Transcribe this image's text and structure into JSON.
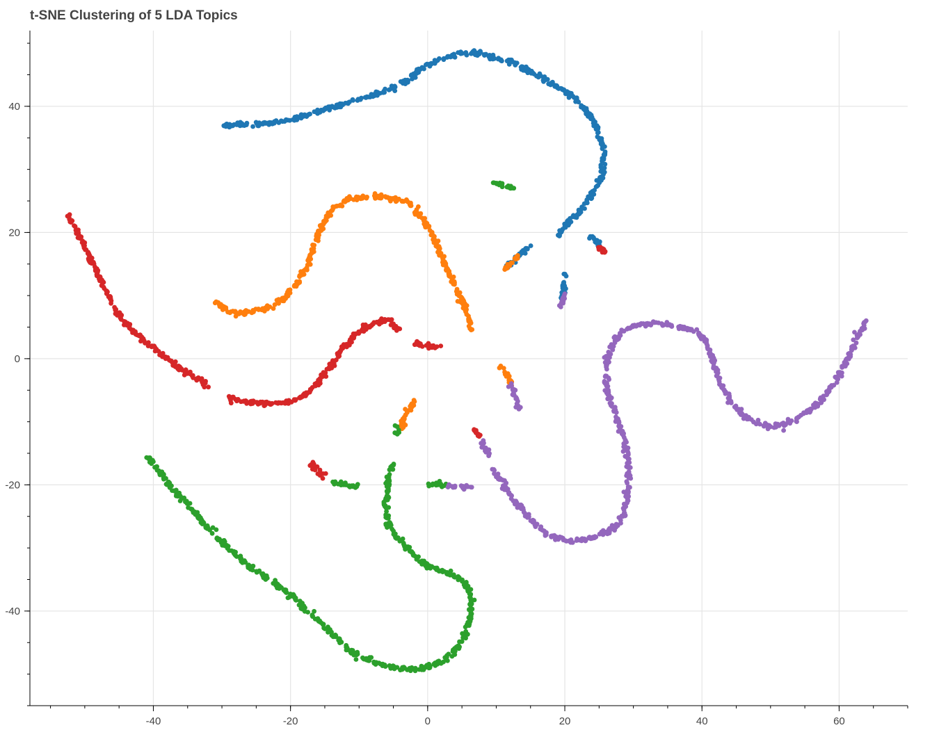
{
  "chart_data": {
    "type": "scatter",
    "title": "t-SNE Clustering of 5 LDA Topics",
    "xlabel": "",
    "ylabel": "",
    "xlim": [
      -58,
      70
    ],
    "ylim": [
      -55,
      52
    ],
    "x_ticks": [
      -40,
      -20,
      0,
      20,
      40,
      60
    ],
    "y_ticks": [
      40,
      20,
      0,
      -20,
      -40
    ],
    "grid": true,
    "legend": "none",
    "colors": [
      "#1f77b4",
      "#ff7f0e",
      "#2ca02c",
      "#d62728",
      "#9467bd"
    ],
    "series": [
      {
        "color": "#1f77b4",
        "segments": [
          [
            [
              -30,
              37
            ],
            [
              -25,
              37.1
            ],
            [
              -20,
              37.8
            ],
            [
              -15,
              39.5
            ],
            [
              -10,
              41
            ],
            [
              -6,
              42.5
            ],
            [
              -3,
              44
            ],
            [
              -1,
              46
            ],
            [
              2,
              47.5
            ],
            [
              5,
              48.5
            ],
            [
              8,
              48.3
            ],
            [
              12,
              47
            ],
            [
              16,
              45
            ],
            [
              19,
              43
            ],
            [
              22,
              41
            ],
            [
              24.5,
              37
            ],
            [
              25.8,
              33
            ],
            [
              25.5,
              29
            ],
            [
              24,
              26
            ],
            [
              22,
              23
            ],
            [
              20,
              21
            ],
            [
              19,
              19.5
            ]
          ],
          [
            [
              15,
              18
            ],
            [
              13,
              16
            ],
            [
              11.5,
              14.5
            ]
          ],
          [
            [
              20,
              13.5
            ],
            [
              19.8,
              11
            ],
            [
              19.6,
              9.5
            ]
          ],
          [
            [
              23.5,
              19.5
            ],
            [
              24.5,
              18.5
            ],
            [
              25.3,
              17.8
            ]
          ]
        ]
      },
      {
        "color": "#ff7f0e",
        "segments": [
          [
            [
              -31,
              9
            ],
            [
              -29,
              7.5
            ],
            [
              -27,
              7.2
            ],
            [
              -24,
              7.8
            ],
            [
              -21,
              9.5
            ],
            [
              -19,
              12
            ],
            [
              -17.5,
              15
            ],
            [
              -16.5,
              18
            ],
            [
              -15.5,
              21
            ],
            [
              -14,
              23.5
            ],
            [
              -12,
              25
            ],
            [
              -9,
              25.8
            ],
            [
              -6,
              25.6
            ],
            [
              -3,
              24.8
            ],
            [
              -1,
              22.5
            ],
            [
              1,
              19
            ],
            [
              2.5,
              15
            ],
            [
              4,
              11.5
            ],
            [
              5.3,
              8.5
            ],
            [
              6,
              6
            ],
            [
              6.3,
              4.5
            ]
          ],
          [
            [
              11,
              14
            ],
            [
              12.3,
              15.2
            ],
            [
              13.3,
              16.5
            ]
          ],
          [
            [
              10.5,
              -1
            ],
            [
              11.5,
              -2.8
            ],
            [
              12.5,
              -4.3
            ]
          ],
          [
            [
              -4,
              -11
            ],
            [
              -3,
              -8.5
            ],
            [
              -2,
              -6.5
            ]
          ]
        ]
      },
      {
        "color": "#2ca02c",
        "segments": [
          [
            [
              -41,
              -15.5
            ],
            [
              -39,
              -18
            ],
            [
              -37,
              -21
            ],
            [
              -35,
              -23
            ],
            [
              -32,
              -27
            ],
            [
              -29,
              -30
            ],
            [
              -26,
              -33
            ],
            [
              -23,
              -35
            ],
            [
              -20,
              -37.5
            ],
            [
              -17,
              -40.5
            ],
            [
              -14,
              -43.5
            ],
            [
              -11,
              -46.5
            ],
            [
              -8,
              -48
            ],
            [
              -5,
              -49
            ],
            [
              -2,
              -49.2
            ],
            [
              1,
              -48.5
            ],
            [
              3.5,
              -47
            ],
            [
              5.5,
              -44
            ],
            [
              6.3,
              -40
            ],
            [
              6.2,
              -37
            ],
            [
              5,
              -35
            ],
            [
              3,
              -34
            ],
            [
              0,
              -33
            ],
            [
              -2,
              -31
            ],
            [
              -4,
              -29
            ],
            [
              -5.5,
              -27
            ],
            [
              -6,
              -24
            ],
            [
              -6,
              -21
            ],
            [
              -5.5,
              -18
            ],
            [
              -5,
              -16.5
            ]
          ],
          [
            [
              -14,
              -19.7
            ],
            [
              -12,
              -20
            ],
            [
              -10,
              -20.4
            ]
          ],
          [
            [
              0,
              -20
            ],
            [
              1.5,
              -20
            ],
            [
              3,
              -20
            ]
          ],
          [
            [
              -4.5,
              -12
            ],
            [
              -4.1,
              -10.5
            ]
          ],
          [
            [
              9.5,
              28
            ],
            [
              11,
              27.5
            ],
            [
              12.5,
              27
            ]
          ]
        ]
      },
      {
        "color": "#d62728",
        "segments": [
          [
            [
              -52.5,
              23
            ],
            [
              -51,
              20
            ],
            [
              -49.5,
              16.5
            ],
            [
              -48,
              13
            ],
            [
              -46.5,
              10
            ],
            [
              -45,
              7
            ],
            [
              -43,
              4.5
            ],
            [
              -40.5,
              2
            ],
            [
              -38,
              0
            ],
            [
              -35.5,
              -2
            ],
            [
              -33,
              -3.5
            ],
            [
              -32,
              -4.5
            ]
          ],
          [
            [
              -29,
              -6
            ],
            [
              -27,
              -6.8
            ],
            [
              -24,
              -7.2
            ],
            [
              -21,
              -7
            ],
            [
              -19,
              -6.5
            ],
            [
              -17,
              -5
            ],
            [
              -15.5,
              -3
            ],
            [
              -14,
              -1
            ],
            [
              -12.5,
              1.5
            ],
            [
              -11,
              3.5
            ],
            [
              -9,
              5
            ],
            [
              -7,
              6
            ],
            [
              -5.5,
              6
            ],
            [
              -4.5,
              5
            ],
            [
              -4,
              4.5
            ]
          ],
          [
            [
              -2,
              2.5
            ],
            [
              0,
              2
            ],
            [
              2,
              2.1
            ]
          ],
          [
            [
              -17,
              -16.5
            ],
            [
              -16,
              -18
            ],
            [
              -15,
              -19
            ]
          ],
          [
            [
              6.5,
              -11
            ],
            [
              7.2,
              -11.8
            ],
            [
              7.6,
              -12.4
            ]
          ],
          [
            [
              24.5,
              18
            ],
            [
              25.2,
              17.3
            ],
            [
              26,
              16.7
            ]
          ]
        ]
      },
      {
        "color": "#9467bd",
        "segments": [
          [
            [
              9.5,
              -17.5
            ],
            [
              11,
              -20
            ],
            [
              13,
              -23
            ],
            [
              15,
              -25.5
            ],
            [
              17,
              -27.5
            ],
            [
              19,
              -28.6
            ],
            [
              21,
              -29
            ],
            [
              23,
              -28.6
            ],
            [
              25,
              -28
            ],
            [
              27,
              -27
            ],
            [
              28.5,
              -25
            ],
            [
              29.2,
              -22
            ],
            [
              29.3,
              -19
            ],
            [
              29.2,
              -16
            ],
            [
              28.5,
              -12
            ],
            [
              27,
              -8
            ],
            [
              26,
              -4
            ],
            [
              26.3,
              0
            ],
            [
              27,
              2.5
            ],
            [
              28.5,
              4.5
            ],
            [
              31,
              5.5
            ],
            [
              34,
              5.7
            ],
            [
              37,
              5
            ],
            [
              39,
              4.5
            ],
            [
              40.5,
              3
            ],
            [
              41.5,
              0
            ],
            [
              42.5,
              -3.5
            ],
            [
              44,
              -6.5
            ],
            [
              46,
              -9
            ],
            [
              48,
              -10.3
            ],
            [
              50,
              -10.7
            ],
            [
              52,
              -10.4
            ],
            [
              54,
              -9.5
            ],
            [
              56,
              -8
            ],
            [
              58,
              -6
            ],
            [
              59.5,
              -3.5
            ],
            [
              61,
              -0.5
            ],
            [
              62.5,
              3
            ],
            [
              64,
              6
            ]
          ],
          [
            [
              12,
              -4
            ],
            [
              12.8,
              -6
            ],
            [
              13.3,
              -8
            ]
          ],
          [
            [
              7.8,
              -13
            ],
            [
              8.5,
              -14.5
            ],
            [
              9.2,
              -15.5
            ]
          ],
          [
            [
              19.5,
              8
            ],
            [
              19.8,
              9.5
            ],
            [
              20,
              10.5
            ]
          ],
          [
            [
              3,
              -20
            ],
            [
              4.5,
              -20.3
            ],
            [
              6.5,
              -20.5
            ]
          ]
        ]
      }
    ]
  }
}
